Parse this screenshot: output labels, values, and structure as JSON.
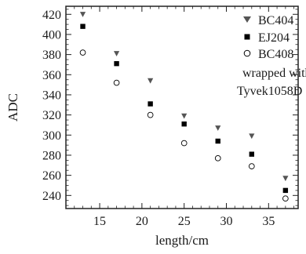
{
  "chart_data": {
    "type": "scatter",
    "title": "",
    "xlabel": "length/cm",
    "ylabel": "ADC",
    "xlim": [
      11,
      38.5
    ],
    "ylim": [
      227,
      428
    ],
    "xticks": [
      15,
      20,
      25,
      30,
      35
    ],
    "yticks": [
      240,
      260,
      280,
      300,
      320,
      340,
      360,
      380,
      400,
      420
    ],
    "x": [
      13,
      17,
      21,
      25,
      29,
      33,
      37
    ],
    "series": [
      {
        "name": "BC404",
        "marker": "triangle-down",
        "color": "#555555",
        "values": [
          420,
          381,
          354,
          319,
          307,
          299,
          257
        ]
      },
      {
        "name": "EJ204",
        "marker": "square",
        "color": "#000000",
        "values": [
          408,
          371,
          331,
          311,
          294,
          281,
          245
        ]
      },
      {
        "name": "BC408",
        "marker": "circle-open",
        "color": "#000000",
        "values": [
          382,
          352,
          320,
          292,
          277,
          269,
          237
        ]
      }
    ],
    "legend_position": "top-right",
    "annotation": [
      "wrapped with",
      "Tyvek1058D"
    ],
    "grid": false
  }
}
